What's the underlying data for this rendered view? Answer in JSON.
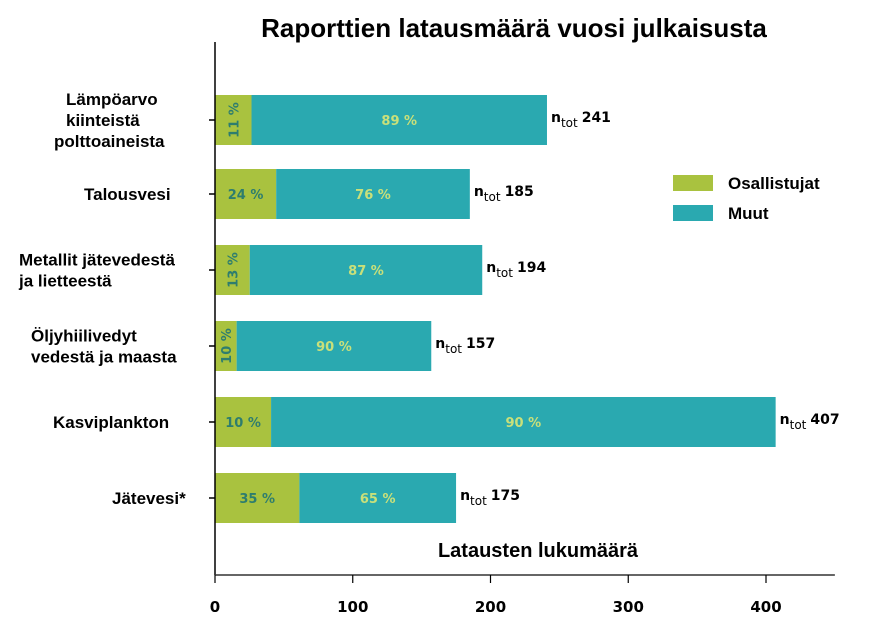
{
  "chart_data": {
    "type": "bar",
    "orientation": "horizontal",
    "stacked": true,
    "title": "Raporttien latausmäärä vuosi julkaisusta",
    "xlabel": "Latausten lukumäärä",
    "ylabel": "",
    "xlim": [
      0,
      450
    ],
    "xticks": [
      "0",
      "100",
      "200",
      "300",
      "400"
    ],
    "xtick_values": [
      0,
      100,
      200,
      300,
      400
    ],
    "grid": false,
    "legend_position": "right",
    "categories": [
      [
        "Lämpöarvo",
        "kiinteistä",
        "polttoaineista"
      ],
      [
        "Talousvesi"
      ],
      [
        "Metallit jätevedestä",
        "ja lietteestä"
      ],
      [
        "Öljyhiilivedyt",
        "vedestä ja maasta"
      ],
      [
        "Kasviplankton"
      ],
      [
        "Jätevesi*"
      ]
    ],
    "totals": [
      241,
      185,
      194,
      157,
      407,
      175
    ],
    "total_labels": [
      "241",
      "185",
      "194",
      "157",
      "407",
      "175"
    ],
    "total_prefix": "n",
    "total_subscript": "tot",
    "series": [
      {
        "name": "Osallistujat",
        "color": "#a9c23f",
        "label_color": "#2e7d6e",
        "percent_values": [
          11,
          24,
          13,
          10,
          10,
          35
        ],
        "percent_labels": [
          "11 %",
          "24 %",
          "13 %",
          "10 %",
          "10 %",
          "35 %"
        ],
        "label_rotated": [
          true,
          false,
          true,
          true,
          false,
          false
        ]
      },
      {
        "name": "Muut",
        "color": "#2aa9b0",
        "label_color": "#c9e07a",
        "percent_values": [
          89,
          76,
          87,
          90,
          90,
          65
        ],
        "percent_labels": [
          "89 %",
          "76 %",
          "87 %",
          "90 %",
          "90 %",
          "65 %"
        ],
        "label_rotated": [
          false,
          false,
          false,
          false,
          false,
          false
        ]
      }
    ]
  }
}
